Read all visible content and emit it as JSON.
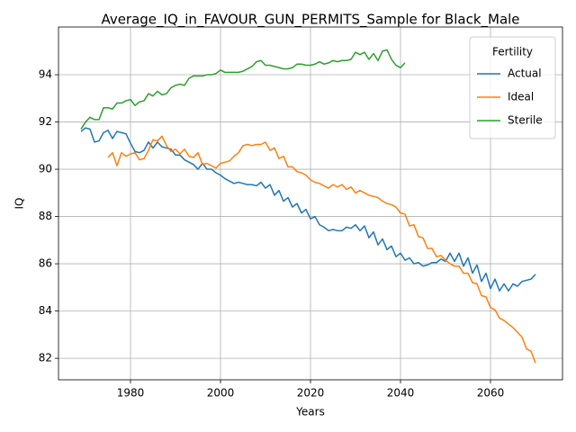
{
  "chart_data": {
    "type": "line",
    "title": "Average_IQ_in_FAVOUR_GUN_PERMITS_Sample for Black_Male",
    "x_label": "Years",
    "y_label": "IQ",
    "legend_title": "Fertility",
    "legend_loc": "upper right",
    "grid": true,
    "xlim": [
      1964,
      2076
    ],
    "ylim": [
      81.09,
      96.02
    ],
    "xticks": [
      1980,
      2000,
      2020,
      2040,
      2060
    ],
    "yticks": [
      82,
      84,
      86,
      88,
      90,
      92,
      94
    ],
    "x": [
      1969,
      1970,
      1971,
      1972,
      1973,
      1974,
      1975,
      1976,
      1977,
      1978,
      1979,
      1980,
      1981,
      1982,
      1983,
      1984,
      1985,
      1986,
      1987,
      1988,
      1989,
      1990,
      1991,
      1992,
      1993,
      1994,
      1995,
      1996,
      1997,
      1998,
      1999,
      2000,
      2001,
      2002,
      2003,
      2004,
      2005,
      2006,
      2007,
      2008,
      2009,
      2010,
      2011,
      2012,
      2013,
      2014,
      2015,
      2016,
      2017,
      2018,
      2019,
      2020,
      2021,
      2022,
      2023,
      2024,
      2025,
      2026,
      2027,
      2028,
      2029,
      2030,
      2031,
      2032,
      2033,
      2034,
      2035,
      2036,
      2037,
      2038,
      2039,
      2040,
      2041,
      2042,
      2043,
      2044,
      2045,
      2046,
      2047,
      2048,
      2049,
      2050,
      2051,
      2052,
      2053,
      2054,
      2055,
      2056,
      2057,
      2058,
      2059,
      2060,
      2061,
      2062,
      2063,
      2064,
      2065,
      2066,
      2067,
      2068,
      2069,
      2070
    ],
    "series": [
      {
        "name": "Actual",
        "color": "#1f77b4",
        "values": [
          91.6,
          91.75,
          91.7,
          91.15,
          91.2,
          91.55,
          91.65,
          91.3,
          91.6,
          91.55,
          91.5,
          91.1,
          90.75,
          90.7,
          90.8,
          91.15,
          90.9,
          91.15,
          90.95,
          90.9,
          90.85,
          90.6,
          90.6,
          90.4,
          90.3,
          90.2,
          90.0,
          90.25,
          90.0,
          90.0,
          89.85,
          89.75,
          89.6,
          89.5,
          89.4,
          89.45,
          89.4,
          89.35,
          89.35,
          89.3,
          89.45,
          89.2,
          89.35,
          88.9,
          89.1,
          88.65,
          88.8,
          88.4,
          88.55,
          88.15,
          88.3,
          87.9,
          88.0,
          87.65,
          87.55,
          87.4,
          87.45,
          87.4,
          87.4,
          87.55,
          87.5,
          87.65,
          87.4,
          87.6,
          87.1,
          87.35,
          86.8,
          87.05,
          86.6,
          86.75,
          86.3,
          86.45,
          86.15,
          86.25,
          86.0,
          86.05,
          85.9,
          85.95,
          86.05,
          86.05,
          86.2,
          86.1,
          86.45,
          86.1,
          86.45,
          85.9,
          86.25,
          85.6,
          85.95,
          85.25,
          85.6,
          84.95,
          85.35,
          84.85,
          85.15,
          84.85,
          85.15,
          85.05,
          85.25,
          85.3,
          85.35,
          85.55
        ]
      },
      {
        "name": "Ideal",
        "color": "#ff7f0e",
        "values": [
          null,
          null,
          null,
          null,
          null,
          null,
          90.5,
          90.7,
          90.15,
          90.7,
          90.55,
          90.65,
          90.7,
          90.4,
          90.45,
          90.8,
          91.25,
          91.2,
          91.4,
          91.0,
          90.75,
          90.85,
          90.65,
          90.85,
          90.55,
          90.5,
          90.7,
          90.2,
          90.25,
          90.15,
          90.05,
          90.25,
          90.3,
          90.35,
          90.55,
          90.7,
          91.0,
          91.05,
          91.0,
          91.05,
          91.05,
          91.15,
          90.8,
          90.9,
          90.45,
          90.55,
          90.1,
          90.1,
          89.9,
          89.85,
          89.75,
          89.55,
          89.45,
          89.4,
          89.3,
          89.2,
          89.35,
          89.25,
          89.35,
          89.15,
          89.25,
          89.0,
          89.1,
          89.0,
          88.9,
          88.85,
          88.8,
          88.65,
          88.55,
          88.5,
          88.4,
          88.15,
          88.1,
          87.6,
          87.65,
          87.15,
          87.1,
          86.65,
          86.65,
          86.3,
          86.35,
          86.15,
          86.0,
          85.9,
          85.9,
          85.6,
          85.6,
          85.2,
          85.15,
          84.65,
          84.6,
          84.15,
          84.05,
          83.7,
          83.6,
          83.45,
          83.3,
          83.1,
          82.9,
          82.4,
          82.3,
          81.8
        ]
      },
      {
        "name": "Sterile",
        "color": "#2ca02c",
        "values": [
          91.7,
          92.0,
          92.2,
          92.1,
          92.1,
          92.6,
          92.6,
          92.55,
          92.8,
          92.8,
          92.9,
          92.95,
          92.7,
          92.85,
          92.9,
          93.2,
          93.1,
          93.3,
          93.15,
          93.2,
          93.45,
          93.55,
          93.6,
          93.55,
          93.85,
          93.95,
          93.95,
          93.95,
          94.0,
          94.0,
          94.05,
          94.2,
          94.1,
          94.1,
          94.1,
          94.1,
          94.15,
          94.25,
          94.35,
          94.55,
          94.6,
          94.4,
          94.4,
          94.35,
          94.3,
          94.25,
          94.25,
          94.3,
          94.45,
          94.45,
          94.4,
          94.4,
          94.45,
          94.55,
          94.45,
          94.5,
          94.6,
          94.55,
          94.6,
          94.6,
          94.65,
          94.95,
          94.85,
          94.95,
          94.65,
          94.9,
          94.6,
          95.0,
          95.05,
          94.65,
          94.4,
          94.3,
          94.5,
          null,
          null,
          null,
          null,
          null,
          null,
          null,
          null,
          null,
          null,
          null,
          null,
          null,
          null,
          null,
          null,
          null,
          null,
          null,
          null,
          null,
          null,
          null,
          null,
          null,
          null,
          null,
          null,
          null
        ]
      }
    ]
  }
}
